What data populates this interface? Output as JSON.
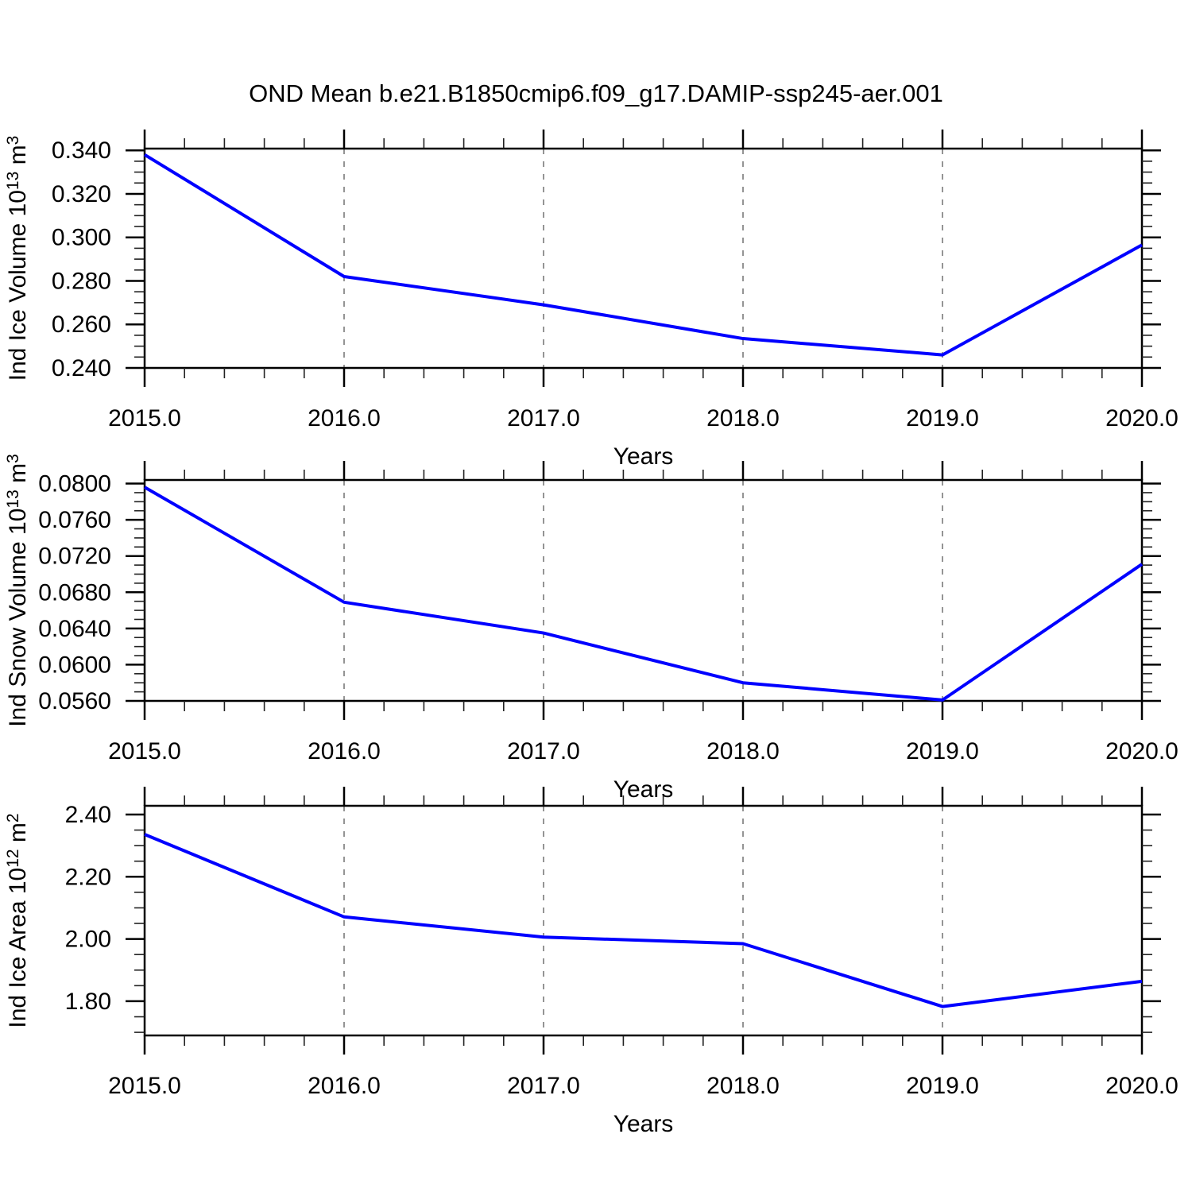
{
  "title": "OND Mean b.e21.B1850cmip6.f09_g17.DAMIP-ssp245-aer.001",
  "colors": {
    "background": "#ffffff",
    "line": "#0000ff",
    "gridline": "#7a7a7a",
    "axis": "#000000",
    "minor_tick": "#222222",
    "text": "#000000"
  },
  "x_axis": {
    "label": "Years",
    "tick_labels": [
      "2015.0",
      "2016.0",
      "2017.0",
      "2018.0",
      "2019.0",
      "2020.0"
    ],
    "tick_values": [
      2015,
      2016,
      2017,
      2018,
      2019,
      2020
    ],
    "minor_step": 0.2,
    "range": [
      2015,
      2020
    ],
    "gridlines_at": [
      2016,
      2017,
      2018,
      2019
    ]
  },
  "chart_data": [
    {
      "name": "ind-ice-volume",
      "type": "line",
      "title": "",
      "xlabel": "Years",
      "ylabel": "Ind Ice Volume 10^{13} m^{3}",
      "x": [
        2015,
        2016,
        2017,
        2018,
        2019,
        2020
      ],
      "values": [
        0.338,
        0.282,
        0.269,
        0.2535,
        0.246,
        0.2965
      ],
      "ytick_labels": [
        "0.240",
        "0.260",
        "0.280",
        "0.300",
        "0.320",
        "0.340"
      ],
      "ytick_values": [
        0.24,
        0.26,
        0.28,
        0.3,
        0.32,
        0.34
      ],
      "y_minor_step": 0.005,
      "ylim": [
        0.24,
        0.3408
      ],
      "line_color": "#0000ff",
      "grid": true,
      "legend": "none"
    },
    {
      "name": "ind-snow-volume",
      "type": "line",
      "title": "",
      "xlabel": "Years",
      "ylabel": "Ind Snow Volume 10^{13} m^{3}",
      "x": [
        2015,
        2016,
        2017,
        2018,
        2019,
        2020
      ],
      "values": [
        0.0796,
        0.0669,
        0.0635,
        0.058,
        0.0561,
        0.0711
      ],
      "ytick_labels": [
        "0.0560",
        "0.0600",
        "0.0640",
        "0.0680",
        "0.0720",
        "0.0760",
        "0.0800"
      ],
      "ytick_values": [
        0.056,
        0.06,
        0.064,
        0.068,
        0.072,
        0.076,
        0.08
      ],
      "y_minor_step": 0.001,
      "ylim": [
        0.056,
        0.0804
      ],
      "line_color": "#0000ff",
      "grid": true,
      "legend": "none"
    },
    {
      "name": "ind-ice-area",
      "type": "line",
      "title": "",
      "xlabel": "Years",
      "ylabel": "Ind Ice Area 10^{12} m^{2}",
      "x": [
        2015,
        2016,
        2017,
        2018,
        2019,
        2020
      ],
      "values": [
        2.336,
        2.071,
        2.006,
        1.985,
        1.783,
        1.864
      ],
      "ytick_labels": [
        "1.80",
        "2.00",
        "2.20",
        "2.40"
      ],
      "ytick_values": [
        1.8,
        2.0,
        2.2,
        2.4
      ],
      "y_minor_step": 0.05,
      "ylim": [
        1.69,
        2.428
      ],
      "line_color": "#0000ff",
      "grid": true,
      "legend": "none"
    }
  ]
}
